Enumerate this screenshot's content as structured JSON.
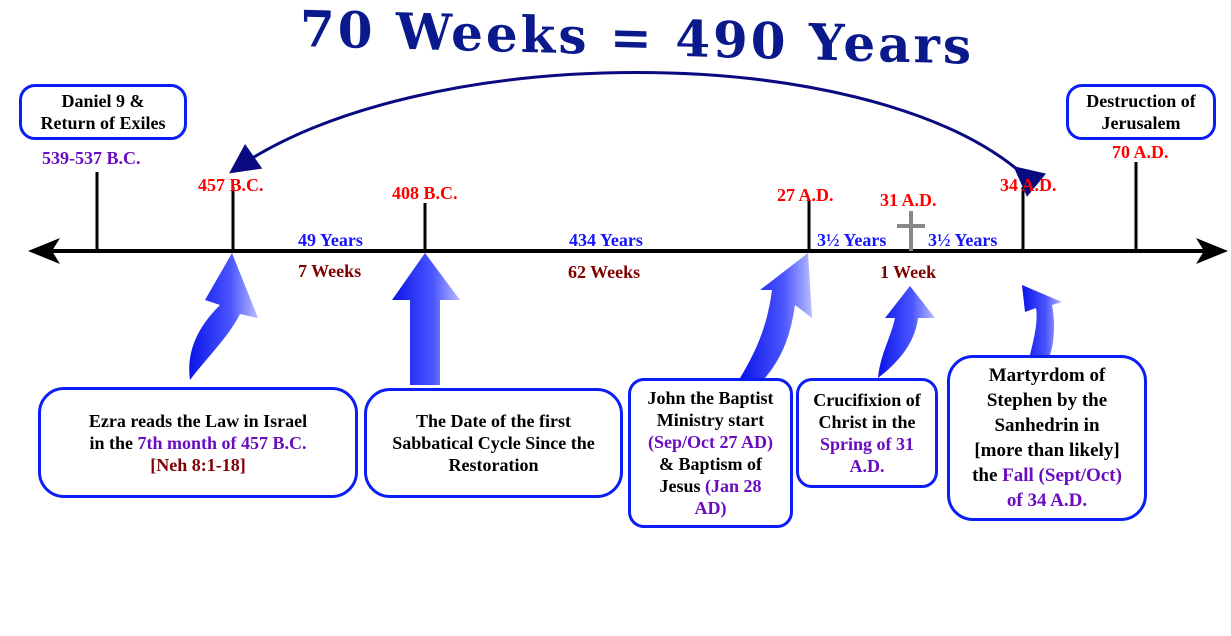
{
  "title": "70 Weeks = 490 Years",
  "top_boxes": {
    "daniel": {
      "line1": "Daniel 9 &",
      "line2": "Return of Exiles",
      "date": "539-537 B.C."
    },
    "destruction": {
      "line1": "Destruction of",
      "line2": "Jerusalem",
      "date": "70 A.D."
    }
  },
  "dates": {
    "d457": "457 B.C.",
    "d408": "408 B.C.",
    "d27": "27 A.D.",
    "d31": "31 A.D.",
    "d34": "34 A.D."
  },
  "periods": {
    "p1_years": "49 Years",
    "p1_weeks": "7 Weeks",
    "p2_years": "434 Years",
    "p2_weeks": "62 Weeks",
    "p3a_years": "3½ Years",
    "p3b_years": "3½ Years",
    "p3_weeks": "1 Week"
  },
  "events": {
    "ezra": {
      "line1": "Ezra reads the Law in Israel",
      "line2a": "in the ",
      "line2b": "7th month of 457 B.C.",
      "line3": "[Neh 8:1-18]"
    },
    "sabbatical": {
      "line1": "The Date of the first",
      "line2": "Sabbatical Cycle Since the",
      "line3": "Restoration"
    },
    "john": {
      "line1": "John the Baptist",
      "line2": "Ministry start",
      "line3": "(Sep/Oct 27 AD)",
      "line4": "& Baptism of",
      "line5a": "Jesus ",
      "line5b": "(Jan 28",
      "line6": "AD)"
    },
    "crucifixion": {
      "line1": "Crucifixion of",
      "line2": "Christ in the",
      "line3": "Spring of 31",
      "line4": "A.D."
    },
    "martyrdom": {
      "line1": "Martyrdom of",
      "line2": "Stephen by the",
      "line3": "Sanhedrin in",
      "line4": "[more than likely]",
      "line5a": "the ",
      "line5b": "Fall (Sept/Oct)",
      "line6": "of 34 A.D."
    }
  },
  "colors": {
    "box_border": "#0a1ef5",
    "title": "#0a1a8c",
    "date_red": "#ff0000",
    "years_blue": "#1414ff",
    "weeks_maroon": "#800000",
    "accent_purple": "#6a0dc0"
  }
}
